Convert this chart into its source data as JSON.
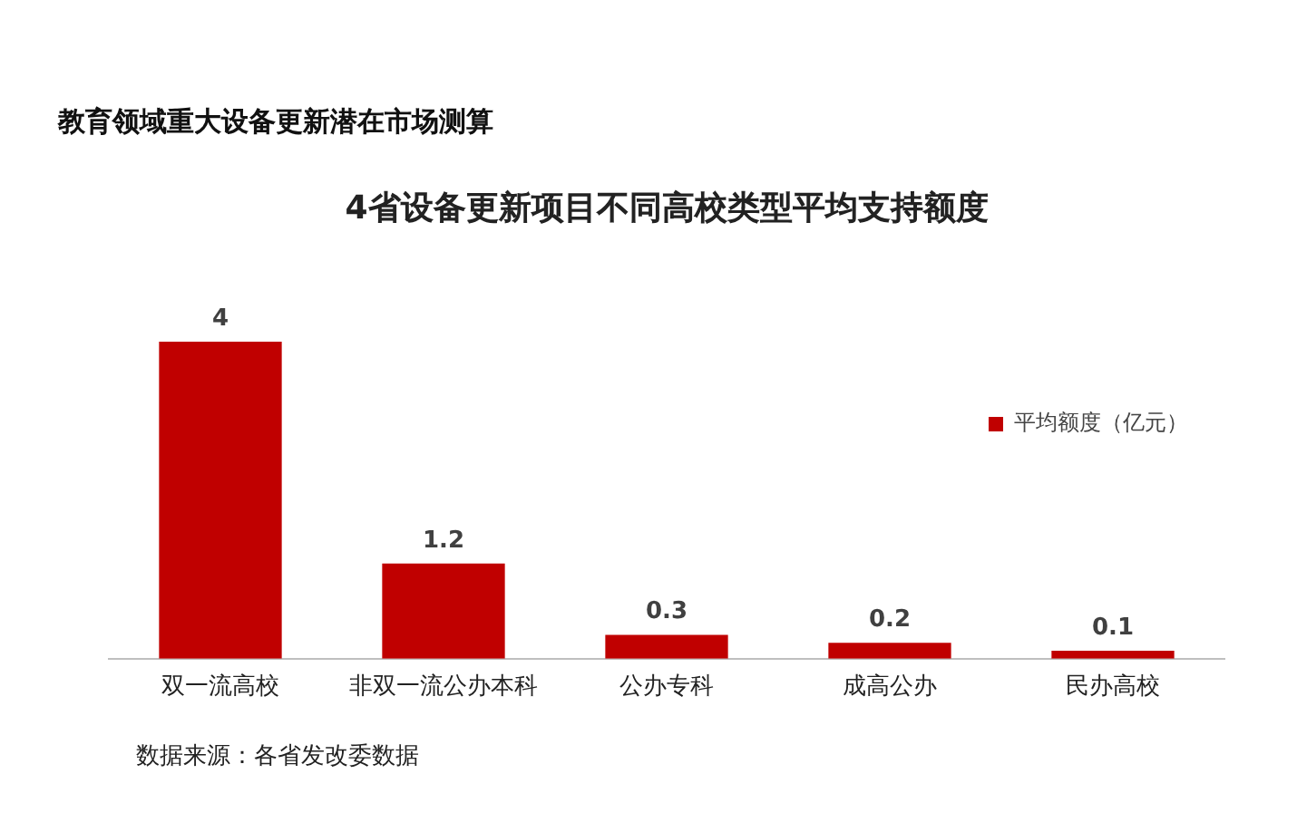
{
  "chart_data": {
    "type": "bar",
    "subtitle": "教育领域重大设备更新潜在市场测算",
    "title": "4省设备更新项目不同高校类型平均支持额度",
    "categories": [
      "双一流高校",
      "非双一流公办本科",
      "公办专科",
      "成高公办",
      "民办高校"
    ],
    "series": [
      {
        "name": "平均额度（亿元）",
        "color": "#c00000",
        "values": [
          4,
          1.2,
          0.3,
          0.2,
          0.1
        ]
      }
    ],
    "data_labels": true,
    "grid": false,
    "legend": "right",
    "annotations": [
      "数据来源：各省发改委数据"
    ]
  }
}
